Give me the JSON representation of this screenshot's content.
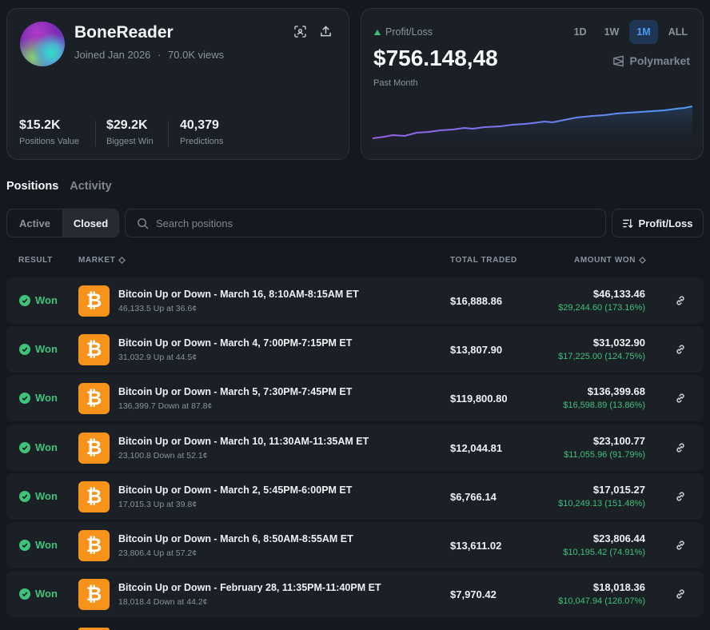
{
  "profile": {
    "username": "BoneReader",
    "joined": "Joined Jan 2026",
    "views": "70.0K views",
    "separator": "·",
    "stats": [
      {
        "value": "$15.2K",
        "label": "Positions Value"
      },
      {
        "value": "$29.2K",
        "label": "Biggest Win"
      },
      {
        "value": "40,379",
        "label": "Predictions"
      }
    ]
  },
  "pnl": {
    "label": "Profit/Loss",
    "value": "$756.148,48",
    "period": "Past Month",
    "brand": "Polymarket",
    "ranges": [
      "1D",
      "1W",
      "1M",
      "ALL"
    ],
    "active_range": "1M",
    "line_color": "#4a9df5",
    "start_color": "#9b5de5"
  },
  "tabs": {
    "positions": "Positions",
    "activity": "Activity"
  },
  "filters": {
    "active": "Active",
    "closed": "Closed",
    "search_placeholder": "Search positions",
    "sort_label": "Profit/Loss"
  },
  "table": {
    "headers": {
      "result": "RESULT",
      "market": "MARKET",
      "traded": "TOTAL TRADED",
      "amount": "AMOUNT WON"
    },
    "rows": [
      {
        "result": "Won",
        "title": "Bitcoin Up or Down - March 16, 8:10AM-8:15AM ET",
        "sub": "46,133.5 Up at 36.6¢",
        "traded": "$16,888.86",
        "amount": "$46,133.46",
        "gain": "$29,244.60 (173.16%)"
      },
      {
        "result": "Won",
        "title": "Bitcoin Up or Down - March 4, 7:00PM-7:15PM ET",
        "sub": "31,032.9 Up at 44.5¢",
        "traded": "$13,807.90",
        "amount": "$31,032.90",
        "gain": "$17,225.00 (124.75%)"
      },
      {
        "result": "Won",
        "title": "Bitcoin Up or Down - March 5, 7:30PM-7:45PM ET",
        "sub": "136,399.7 Down at 87.8¢",
        "traded": "$119,800.80",
        "amount": "$136,399.68",
        "gain": "$16,598.89 (13.86%)"
      },
      {
        "result": "Won",
        "title": "Bitcoin Up or Down - March 10, 11:30AM-11:35AM ET",
        "sub": "23,100.8 Down at 52.1¢",
        "traded": "$12,044.81",
        "amount": "$23,100.77",
        "gain": "$11,055.96 (91.79%)"
      },
      {
        "result": "Won",
        "title": "Bitcoin Up or Down - March 2, 5:45PM-6:00PM ET",
        "sub": "17,015.3 Up at 39.8¢",
        "traded": "$6,766.14",
        "amount": "$17,015.27",
        "gain": "$10,249.13 (151.48%)"
      },
      {
        "result": "Won",
        "title": "Bitcoin Up or Down - March 6, 8:50AM-8:55AM ET",
        "sub": "23,806.4 Up at 57.2¢",
        "traded": "$13,611.02",
        "amount": "$23,806.44",
        "gain": "$10,195.42 (74.91%)"
      },
      {
        "result": "Won",
        "title": "Bitcoin Up or Down - February 28, 11:35PM-11:40PM ET",
        "sub": "18,018.4 Down at 44.2¢",
        "traded": "$7,970.42",
        "amount": "$18,018.36",
        "gain": "$10,047.94 (126.07%)"
      }
    ]
  }
}
